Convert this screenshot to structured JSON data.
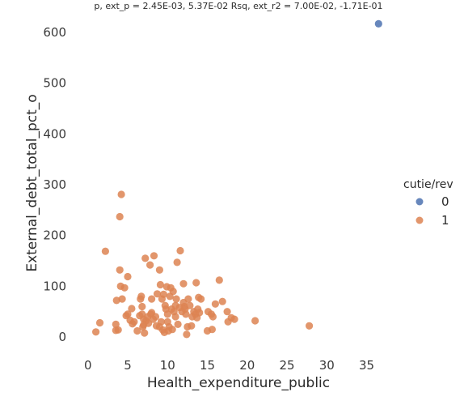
{
  "chart_data": {
    "type": "scatter",
    "title": "p, ext_p = 2.45E-03, 5.37E-02 Rsq, ext_r2 = 7.00E-02, -1.71E-01",
    "xlabel": "Health_expenditure_public",
    "ylabel": "External_debt_total_pct_o",
    "xlim": [
      -1.5,
      38.5
    ],
    "ylim": [
      -35,
      640
    ],
    "x_ticks": [
      "0",
      "5",
      "10",
      "15",
      "20",
      "25",
      "30",
      "35"
    ],
    "y_ticks": [
      "0",
      "100",
      "200",
      "300",
      "400",
      "500",
      "600"
    ],
    "grid": false,
    "legend": {
      "title": "cutie/rev",
      "placement": "right",
      "entries": [
        "0",
        "1"
      ]
    },
    "series": [
      {
        "name": "0",
        "color": "#4c72b0",
        "points": [
          [
            36.5,
            617
          ]
        ]
      },
      {
        "name": "1",
        "color": "#dd8452",
        "points": [
          [
            1.0,
            10
          ],
          [
            1.5,
            28
          ],
          [
            2.2,
            169
          ],
          [
            3.5,
            25
          ],
          [
            3.5,
            13
          ],
          [
            3.6,
            72
          ],
          [
            3.8,
            14
          ],
          [
            4.0,
            132
          ],
          [
            4.0,
            237
          ],
          [
            4.1,
            100
          ],
          [
            4.2,
            281
          ],
          [
            4.3,
            75
          ],
          [
            4.6,
            97
          ],
          [
            4.8,
            42
          ],
          [
            5.0,
            45
          ],
          [
            5.0,
            119
          ],
          [
            5.3,
            33
          ],
          [
            5.5,
            56
          ],
          [
            5.6,
            26
          ],
          [
            5.8,
            30
          ],
          [
            6.2,
            12
          ],
          [
            6.5,
            42
          ],
          [
            6.6,
            75
          ],
          [
            6.7,
            80
          ],
          [
            6.8,
            60
          ],
          [
            6.8,
            45
          ],
          [
            6.9,
            20
          ],
          [
            7.0,
            24
          ],
          [
            7.0,
            35
          ],
          [
            7.1,
            8
          ],
          [
            7.2,
            155
          ],
          [
            7.3,
            32
          ],
          [
            7.5,
            40
          ],
          [
            7.6,
            27
          ],
          [
            7.8,
            142
          ],
          [
            7.9,
            45
          ],
          [
            8.0,
            48
          ],
          [
            8.0,
            75
          ],
          [
            8.2,
            35
          ],
          [
            8.3,
            160
          ],
          [
            8.5,
            40
          ],
          [
            8.6,
            22
          ],
          [
            8.7,
            85
          ],
          [
            9.0,
            132
          ],
          [
            9.0,
            20
          ],
          [
            9.1,
            103
          ],
          [
            9.2,
            30
          ],
          [
            9.3,
            75
          ],
          [
            9.4,
            14
          ],
          [
            9.5,
            84
          ],
          [
            9.6,
            9
          ],
          [
            9.7,
            62
          ],
          [
            9.8,
            55
          ],
          [
            9.9,
            99
          ],
          [
            10.0,
            45
          ],
          [
            10.0,
            30
          ],
          [
            10.1,
            12
          ],
          [
            10.2,
            20
          ],
          [
            10.3,
            80
          ],
          [
            10.4,
            97
          ],
          [
            10.5,
            55
          ],
          [
            10.6,
            15
          ],
          [
            10.7,
            90
          ],
          [
            10.8,
            50
          ],
          [
            11.0,
            62
          ],
          [
            11.0,
            40
          ],
          [
            11.1,
            75
          ],
          [
            11.2,
            147
          ],
          [
            11.3,
            25
          ],
          [
            11.5,
            58
          ],
          [
            11.6,
            170
          ],
          [
            11.8,
            50
          ],
          [
            12.0,
            105
          ],
          [
            12.0,
            68
          ],
          [
            12.1,
            60
          ],
          [
            12.2,
            55
          ],
          [
            12.3,
            45
          ],
          [
            12.4,
            5
          ],
          [
            12.5,
            20
          ],
          [
            12.6,
            75
          ],
          [
            12.8,
            62
          ],
          [
            13.0,
            22
          ],
          [
            13.1,
            40
          ],
          [
            13.3,
            50
          ],
          [
            13.5,
            45
          ],
          [
            13.6,
            107
          ],
          [
            13.7,
            38
          ],
          [
            13.8,
            55
          ],
          [
            13.9,
            78
          ],
          [
            14.0,
            48
          ],
          [
            14.2,
            75
          ],
          [
            15.0,
            12
          ],
          [
            15.1,
            50
          ],
          [
            15.5,
            45
          ],
          [
            15.6,
            15
          ],
          [
            15.7,
            40
          ],
          [
            16.0,
            65
          ],
          [
            16.5,
            112
          ],
          [
            16.9,
            70
          ],
          [
            17.5,
            50
          ],
          [
            17.6,
            30
          ],
          [
            18.0,
            38
          ],
          [
            18.4,
            35
          ],
          [
            21.0,
            32
          ],
          [
            27.8,
            22
          ]
        ]
      }
    ]
  }
}
